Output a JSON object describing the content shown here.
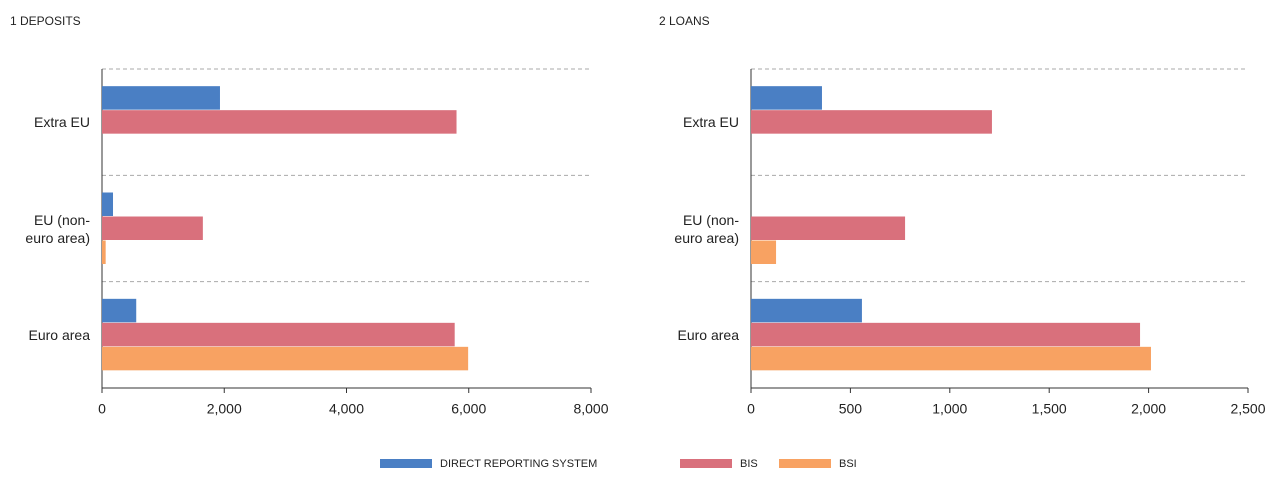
{
  "chart_data": [
    {
      "type": "barh",
      "title": "1 DEPOSITS",
      "categories": [
        "Extra EU",
        "EU (non-euro area)",
        "Euro area"
      ],
      "series": [
        {
          "name": "DIRECT REPORTING SYSTEM",
          "color": "#4a7fc4",
          "values": [
            1930,
            180,
            560
          ]
        },
        {
          "name": "BIS",
          "color": "#d9707c",
          "values": [
            5800,
            1650,
            5770
          ]
        },
        {
          "name": "BSI",
          "color": "#f8a262",
          "values": [
            null,
            60,
            5990
          ]
        }
      ],
      "xlim": [
        0,
        8000
      ],
      "xticks": [
        0,
        {
          "value": 2000,
          "label": "2,000"
        },
        {
          "value": 4000,
          "label": "4,000"
        },
        {
          "value": 6000,
          "label": "6,000"
        },
        {
          "value": 8000,
          "label": "8,000"
        }
      ],
      "grid": true
    },
    {
      "type": "barh",
      "title": "2 LOANS",
      "categories": [
        "Extra EU",
        "EU (non-euro area)",
        "Euro area"
      ],
      "series": [
        {
          "name": "DIRECT REPORTING SYSTEM",
          "color": "#4a7fc4",
          "values": [
            357,
            null,
            558
          ]
        },
        {
          "name": "BIS",
          "color": "#d9707c",
          "values": [
            1212,
            775,
            1957
          ]
        },
        {
          "name": "BSI",
          "color": "#f8a262",
          "values": [
            null,
            126,
            2012
          ]
        }
      ],
      "xlim": [
        0,
        2500
      ],
      "xticks": [
        0,
        500,
        {
          "value": 1000,
          "label": "1,000"
        },
        {
          "value": 1500,
          "label": "1,500"
        },
        {
          "value": 2000,
          "label": "2,000"
        },
        {
          "value": 2500,
          "label": "2,500"
        }
      ],
      "grid": true
    }
  ]
}
